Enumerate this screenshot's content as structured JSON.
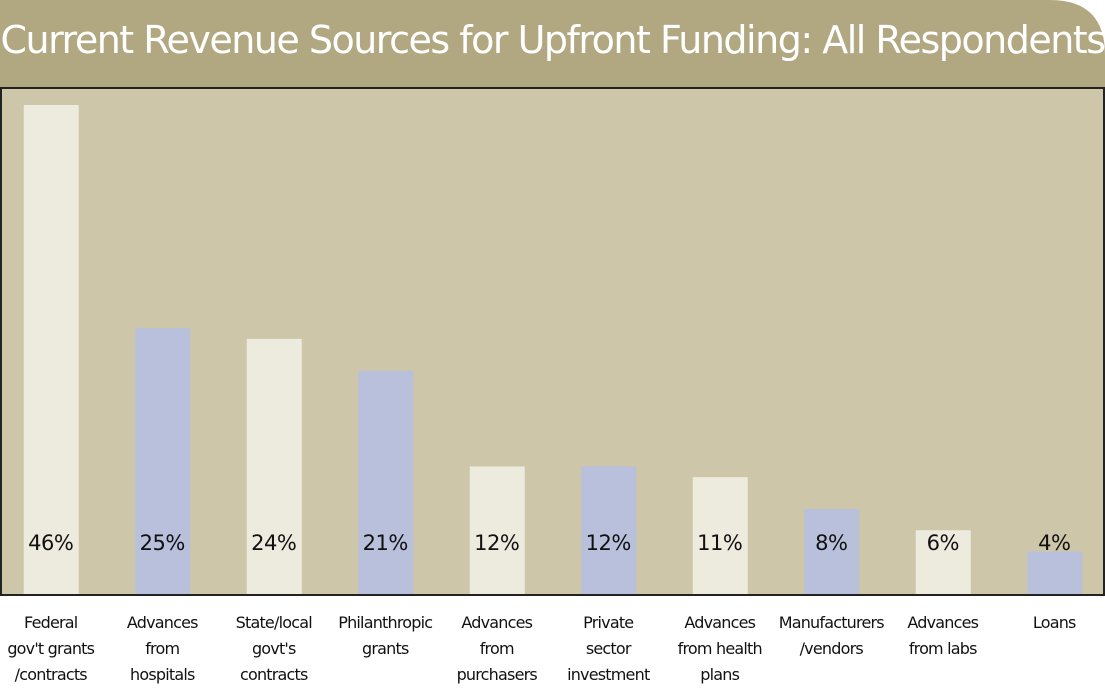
{
  "chart_data": {
    "type": "bar",
    "title": "Current Revenue Sources for Upfront Funding:  All Respondents",
    "categories": [
      "Federal\ngov't grants\n/contracts",
      "Advances\nfrom\nhospitals",
      "State/local\ngovt's\ncontracts",
      "Philanthropic\ngrants",
      "Advances\nfrom\npurchasers",
      "Private\nsector\ninvestment",
      "Advances\nfrom health\nplans",
      "Manufacturers\n/vendors",
      "Advances\nfrom labs",
      "Loans"
    ],
    "values": [
      46,
      25,
      24,
      21,
      12,
      12,
      11,
      8,
      6,
      4
    ],
    "value_labels": [
      "46%",
      "25%",
      "24%",
      "21%",
      "12%",
      "12%",
      "11%",
      "8%",
      "6%",
      "4%"
    ],
    "colors": [
      "#edeade",
      "#b8c0dc",
      "#edeade",
      "#b8c0dc",
      "#edeade",
      "#b8c0dc",
      "#edeade",
      "#b8c0dc",
      "#edeade",
      "#b8c0dc"
    ]
  }
}
